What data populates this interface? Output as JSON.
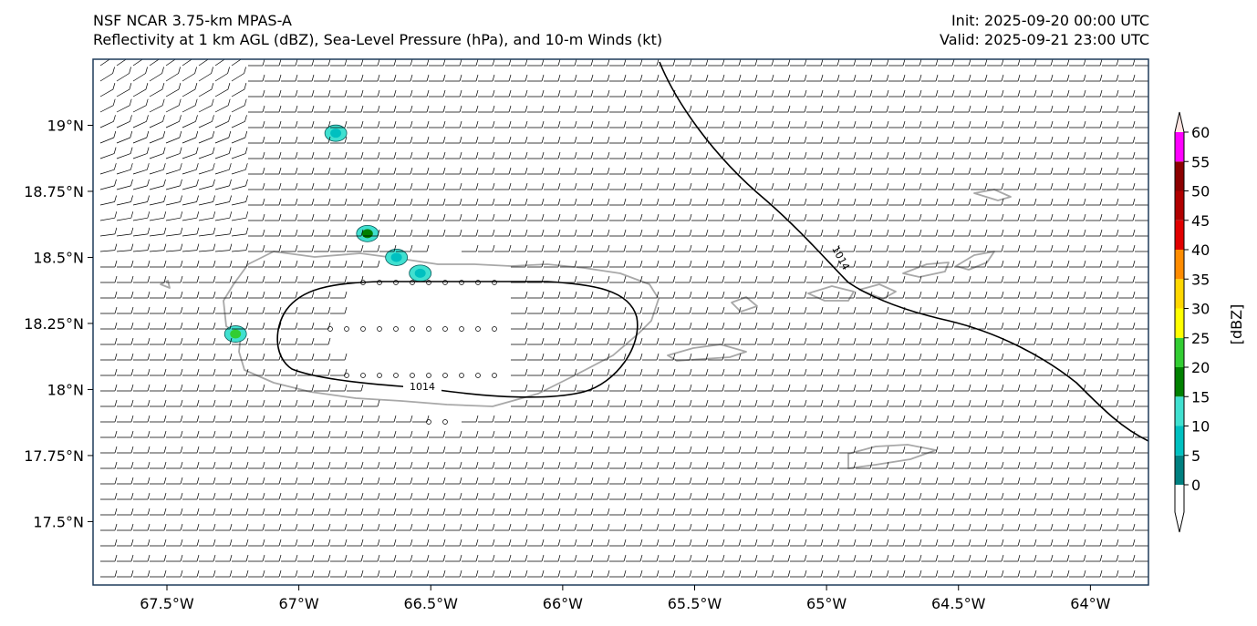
{
  "header": {
    "model": "NSF NCAR 3.75-km MPAS-A",
    "fields": "Reflectivity at 1 km AGL (dBZ), Sea-Level Pressure (hPa), and 10-m Winds (kt)",
    "init": "Init: 2025-09-20 00:00 UTC",
    "valid": "Valid: 2025-09-21 23:00 UTC"
  },
  "map": {
    "lon_range": [
      -67.78,
      -63.78
    ],
    "lat_range": [
      17.26,
      19.25
    ],
    "lon_ticks": [
      {
        "value": -67.5,
        "label": "67.5°W"
      },
      {
        "value": -67.0,
        "label": "67°W"
      },
      {
        "value": -66.5,
        "label": "66.5°W"
      },
      {
        "value": -66.0,
        "label": "66°W"
      },
      {
        "value": -65.5,
        "label": "65.5°W"
      },
      {
        "value": -65.0,
        "label": "65°W"
      },
      {
        "value": -64.5,
        "label": "64.5°W"
      },
      {
        "value": -64.0,
        "label": "64°W"
      }
    ],
    "lat_ticks": [
      {
        "value": 19.0,
        "label": "19°N"
      },
      {
        "value": 18.75,
        "label": "18.75°N"
      },
      {
        "value": 18.5,
        "label": "18.5°N"
      },
      {
        "value": 18.25,
        "label": "18.25°N"
      },
      {
        "value": 18.0,
        "label": "18°N"
      },
      {
        "value": 17.75,
        "label": "17.75°N"
      },
      {
        "value": 17.5,
        "label": "17.5°N"
      }
    ],
    "colors": {
      "coastline": "#a8a8a8",
      "isobar": "#000000",
      "barb": "#000000",
      "frame": "#1f3b5a"
    },
    "isobar_labels": [
      "1014",
      "1014"
    ],
    "reflectivity_cells": [
      {
        "lon": -66.86,
        "lat": 18.97,
        "dbz": 8
      },
      {
        "lon": -66.74,
        "lat": 18.59,
        "dbz": 18
      },
      {
        "lon": -66.63,
        "lat": 18.5,
        "dbz": 8
      },
      {
        "lon": -66.54,
        "lat": 18.44,
        "dbz": 8
      },
      {
        "lon": -67.24,
        "lat": 18.21,
        "dbz": 20
      }
    ]
  },
  "colorbar": {
    "label": "[dBZ]",
    "ticks": [
      "0",
      "5",
      "10",
      "15",
      "20",
      "25",
      "30",
      "35",
      "40",
      "45",
      "50",
      "55",
      "60"
    ],
    "bins": [
      {
        "from": 0,
        "to": 5,
        "color": "#008080"
      },
      {
        "from": 5,
        "to": 10,
        "color": "#00c0c0"
      },
      {
        "from": 10,
        "to": 15,
        "color": "#40e0d0"
      },
      {
        "from": 15,
        "to": 20,
        "color": "#008000"
      },
      {
        "from": 20,
        "to": 25,
        "color": "#32cd32"
      },
      {
        "from": 25,
        "to": 30,
        "color": "#ffff00"
      },
      {
        "from": 30,
        "to": 35,
        "color": "#ffd700"
      },
      {
        "from": 35,
        "to": 40,
        "color": "#ff8c00"
      },
      {
        "from": 40,
        "to": 45,
        "color": "#e00000"
      },
      {
        "from": 45,
        "to": 50,
        "color": "#b00000"
      },
      {
        "from": 50,
        "to": 55,
        "color": "#8b0000"
      },
      {
        "from": 55,
        "to": 60,
        "color": "#ff00ff"
      },
      {
        "from": 60,
        "to": 65,
        "color": "#ffe4e1"
      }
    ]
  }
}
